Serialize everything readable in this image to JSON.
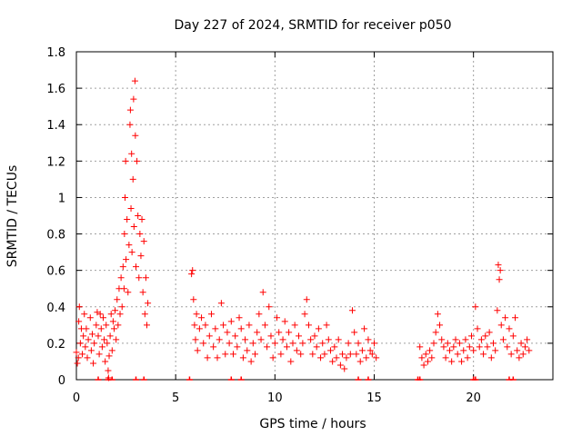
{
  "chart_data": {
    "type": "scatter",
    "title": "Day 227 of 2024, SRMTID for receiver p050",
    "xlabel": "GPS time / hours",
    "ylabel": "SRMTID / TECUs",
    "xlim": [
      0,
      24
    ],
    "ylim": [
      0,
      1.8
    ],
    "xticks": [
      0,
      5,
      10,
      15,
      20
    ],
    "yticks": [
      0,
      0.2,
      0.4,
      0.6,
      0.8,
      1,
      1.2,
      1.4,
      1.6,
      1.8
    ],
    "xtick_labels": [
      "0",
      "5",
      "10",
      "15",
      "20"
    ],
    "ytick_labels": [
      "0",
      "0.2",
      "0.4",
      "0.6",
      "0.8",
      "1",
      "1.2",
      "1.4",
      "1.6",
      "1.8"
    ],
    "grid": true,
    "marker": "+",
    "series": [
      {
        "name": "SRMTID",
        "color": "#ff0000",
        "points": [
          [
            0.0,
            0.15
          ],
          [
            0.05,
            0.09
          ],
          [
            0.1,
            0.12
          ],
          [
            0.12,
            0.32
          ],
          [
            0.15,
            0.4
          ],
          [
            0.2,
            0.2
          ],
          [
            0.25,
            0.28
          ],
          [
            0.3,
            0.14
          ],
          [
            0.35,
            0.24
          ],
          [
            0.4,
            0.36
          ],
          [
            0.45,
            0.18
          ],
          [
            0.5,
            0.28
          ],
          [
            0.55,
            0.12
          ],
          [
            0.6,
            0.22
          ],
          [
            0.7,
            0.34
          ],
          [
            0.75,
            0.16
          ],
          [
            0.8,
            0.25
          ],
          [
            0.85,
            0.09
          ],
          [
            0.9,
            0.2
          ],
          [
            1.0,
            0.3
          ],
          [
            1.05,
            0.37
          ],
          [
            1.1,
            0.24
          ],
          [
            1.15,
            0.14
          ],
          [
            1.2,
            0.36
          ],
          [
            1.25,
            0.28
          ],
          [
            1.3,
            0.18
          ],
          [
            1.35,
            0.34
          ],
          [
            1.4,
            0.22
          ],
          [
            1.45,
            0.1
          ],
          [
            1.5,
            0.3
          ],
          [
            1.55,
            0.2
          ],
          [
            1.6,
            0.05
          ],
          [
            1.62,
            0.01
          ],
          [
            1.65,
            0.13
          ],
          [
            1.7,
            0.24
          ],
          [
            1.75,
            0.36
          ],
          [
            1.8,
            0.16
          ],
          [
            1.85,
            0.32
          ],
          [
            1.9,
            0.28
          ],
          [
            1.95,
            0.38
          ],
          [
            2.0,
            0.22
          ],
          [
            2.05,
            0.44
          ],
          [
            2.1,
            0.3
          ],
          [
            2.15,
            0.5
          ],
          [
            2.2,
            0.36
          ],
          [
            2.25,
            0.56
          ],
          [
            2.3,
            0.4
          ],
          [
            2.35,
            0.62
          ],
          [
            2.4,
            0.5
          ],
          [
            2.42,
            0.8
          ],
          [
            2.45,
            1.0
          ],
          [
            2.48,
            1.2
          ],
          [
            2.5,
            0.66
          ],
          [
            2.55,
            0.88
          ],
          [
            2.6,
            0.48
          ],
          [
            2.65,
            0.74
          ],
          [
            2.7,
            1.4
          ],
          [
            2.72,
            1.48
          ],
          [
            2.75,
            0.94
          ],
          [
            2.78,
            1.24
          ],
          [
            2.8,
            0.7
          ],
          [
            2.85,
            1.1
          ],
          [
            2.88,
            1.54
          ],
          [
            2.9,
            0.84
          ],
          [
            2.95,
            1.64
          ],
          [
            2.97,
            1.34
          ],
          [
            3.0,
            0.62
          ],
          [
            3.05,
            1.2
          ],
          [
            3.1,
            0.9
          ],
          [
            3.15,
            0.56
          ],
          [
            3.2,
            0.8
          ],
          [
            3.25,
            0.68
          ],
          [
            3.3,
            0.88
          ],
          [
            3.35,
            0.48
          ],
          [
            3.4,
            0.76
          ],
          [
            3.45,
            0.36
          ],
          [
            3.5,
            0.56
          ],
          [
            3.55,
            0.3
          ],
          [
            3.6,
            0.42
          ],
          [
            5.8,
            0.58
          ],
          [
            5.85,
            0.6
          ],
          [
            5.9,
            0.44
          ],
          [
            5.95,
            0.3
          ],
          [
            6.0,
            0.22
          ],
          [
            6.05,
            0.36
          ],
          [
            6.1,
            0.16
          ],
          [
            6.2,
            0.28
          ],
          [
            6.3,
            0.34
          ],
          [
            6.4,
            0.2
          ],
          [
            6.5,
            0.3
          ],
          [
            6.6,
            0.12
          ],
          [
            6.7,
            0.24
          ],
          [
            6.8,
            0.36
          ],
          [
            6.9,
            0.18
          ],
          [
            7.0,
            0.28
          ],
          [
            7.1,
            0.12
          ],
          [
            7.2,
            0.22
          ],
          [
            7.3,
            0.42
          ],
          [
            7.4,
            0.3
          ],
          [
            7.5,
            0.14
          ],
          [
            7.6,
            0.26
          ],
          [
            7.7,
            0.2
          ],
          [
            7.8,
            0.32
          ],
          [
            7.9,
            0.14
          ],
          [
            8.0,
            0.24
          ],
          [
            8.1,
            0.18
          ],
          [
            8.2,
            0.34
          ],
          [
            8.3,
            0.28
          ],
          [
            8.4,
            0.12
          ],
          [
            8.5,
            0.22
          ],
          [
            8.6,
            0.16
          ],
          [
            8.7,
            0.3
          ],
          [
            8.8,
            0.1
          ],
          [
            8.9,
            0.2
          ],
          [
            9.0,
            0.14
          ],
          [
            9.1,
            0.26
          ],
          [
            9.2,
            0.36
          ],
          [
            9.3,
            0.22
          ],
          [
            9.4,
            0.48
          ],
          [
            9.5,
            0.3
          ],
          [
            9.6,
            0.18
          ],
          [
            9.7,
            0.4
          ],
          [
            9.8,
            0.24
          ],
          [
            9.9,
            0.12
          ],
          [
            10.0,
            0.2
          ],
          [
            10.1,
            0.34
          ],
          [
            10.2,
            0.26
          ],
          [
            10.3,
            0.14
          ],
          [
            10.4,
            0.22
          ],
          [
            10.5,
            0.32
          ],
          [
            10.6,
            0.18
          ],
          [
            10.7,
            0.26
          ],
          [
            10.8,
            0.1
          ],
          [
            10.9,
            0.2
          ],
          [
            11.0,
            0.3
          ],
          [
            11.1,
            0.16
          ],
          [
            11.2,
            0.24
          ],
          [
            11.3,
            0.14
          ],
          [
            11.4,
            0.2
          ],
          [
            11.5,
            0.36
          ],
          [
            11.6,
            0.44
          ],
          [
            11.7,
            0.3
          ],
          [
            11.8,
            0.22
          ],
          [
            11.9,
            0.14
          ],
          [
            12.0,
            0.24
          ],
          [
            12.1,
            0.18
          ],
          [
            12.2,
            0.28
          ],
          [
            12.3,
            0.12
          ],
          [
            12.4,
            0.2
          ],
          [
            12.5,
            0.14
          ],
          [
            12.6,
            0.3
          ],
          [
            12.7,
            0.22
          ],
          [
            12.8,
            0.16
          ],
          [
            12.9,
            0.1
          ],
          [
            13.0,
            0.18
          ],
          [
            13.1,
            0.12
          ],
          [
            13.2,
            0.22
          ],
          [
            13.3,
            0.08
          ],
          [
            13.4,
            0.14
          ],
          [
            13.5,
            0.06
          ],
          [
            13.6,
            0.12
          ],
          [
            13.7,
            0.2
          ],
          [
            13.8,
            0.14
          ],
          [
            13.9,
            0.38
          ],
          [
            14.0,
            0.26
          ],
          [
            14.1,
            0.14
          ],
          [
            14.2,
            0.2
          ],
          [
            14.3,
            0.1
          ],
          [
            14.4,
            0.16
          ],
          [
            14.5,
            0.28
          ],
          [
            14.6,
            0.12
          ],
          [
            14.7,
            0.22
          ],
          [
            14.8,
            0.16
          ],
          [
            14.9,
            0.14
          ],
          [
            15.0,
            0.2
          ],
          [
            15.1,
            0.12
          ],
          [
            17.3,
            0.18
          ],
          [
            17.4,
            0.12
          ],
          [
            17.5,
            0.08
          ],
          [
            17.6,
            0.14
          ],
          [
            17.7,
            0.1
          ],
          [
            17.8,
            0.16
          ],
          [
            17.9,
            0.12
          ],
          [
            18.0,
            0.2
          ],
          [
            18.1,
            0.26
          ],
          [
            18.2,
            0.36
          ],
          [
            18.3,
            0.3
          ],
          [
            18.4,
            0.22
          ],
          [
            18.5,
            0.18
          ],
          [
            18.6,
            0.12
          ],
          [
            18.7,
            0.2
          ],
          [
            18.8,
            0.16
          ],
          [
            18.9,
            0.1
          ],
          [
            19.0,
            0.18
          ],
          [
            19.1,
            0.22
          ],
          [
            19.2,
            0.14
          ],
          [
            19.3,
            0.2
          ],
          [
            19.4,
            0.1
          ],
          [
            19.5,
            0.16
          ],
          [
            19.6,
            0.22
          ],
          [
            19.7,
            0.12
          ],
          [
            19.8,
            0.18
          ],
          [
            19.9,
            0.24
          ],
          [
            20.0,
            0.16
          ],
          [
            20.1,
            0.4
          ],
          [
            20.2,
            0.28
          ],
          [
            20.3,
            0.18
          ],
          [
            20.4,
            0.22
          ],
          [
            20.5,
            0.14
          ],
          [
            20.6,
            0.24
          ],
          [
            20.7,
            0.18
          ],
          [
            20.8,
            0.26
          ],
          [
            20.9,
            0.12
          ],
          [
            21.0,
            0.2
          ],
          [
            21.1,
            0.16
          ],
          [
            21.2,
            0.38
          ],
          [
            21.25,
            0.63
          ],
          [
            21.3,
            0.55
          ],
          [
            21.35,
            0.6
          ],
          [
            21.4,
            0.3
          ],
          [
            21.5,
            0.22
          ],
          [
            21.6,
            0.34
          ],
          [
            21.7,
            0.18
          ],
          [
            21.8,
            0.28
          ],
          [
            21.9,
            0.14
          ],
          [
            22.0,
            0.24
          ],
          [
            22.1,
            0.34
          ],
          [
            22.2,
            0.16
          ],
          [
            22.3,
            0.12
          ],
          [
            22.4,
            0.2
          ],
          [
            22.5,
            0.14
          ],
          [
            22.6,
            0.18
          ],
          [
            22.7,
            0.22
          ],
          [
            22.8,
            0.16
          ]
        ],
        "zero_markers": [
          1.1,
          1.6,
          1.8,
          3.0,
          3.4,
          5.7,
          7.8,
          8.3,
          14.2,
          14.7,
          17.2,
          17.3,
          20.0,
          20.1,
          21.8,
          22.0
        ]
      }
    ]
  }
}
